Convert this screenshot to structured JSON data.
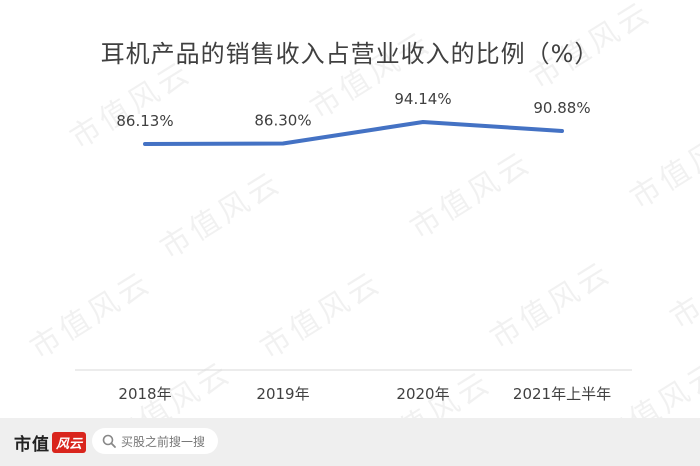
{
  "chart_data": {
    "type": "line",
    "title": "耳机产品的销售收入占营业收入的比例（%）",
    "categories": [
      "2018年",
      "2019年",
      "2020年",
      "2021年上半年"
    ],
    "series": [
      {
        "values": [
          86.13,
          86.3,
          94.14,
          90.88
        ],
        "labels": [
          "86.13%",
          "86.30%",
          "94.14%",
          "90.88%"
        ]
      }
    ],
    "ylim": [
      0,
      100
    ],
    "grid": false,
    "legend": "none",
    "line_color": "#4472c4",
    "axis_color": "#d9d9d9"
  },
  "watermark": {
    "text": "市值风云"
  },
  "footer": {
    "logo_text": "市值",
    "logo_accent": "风云",
    "search_placeholder": "买股之前搜一搜",
    "search_icon": "search-icon"
  }
}
